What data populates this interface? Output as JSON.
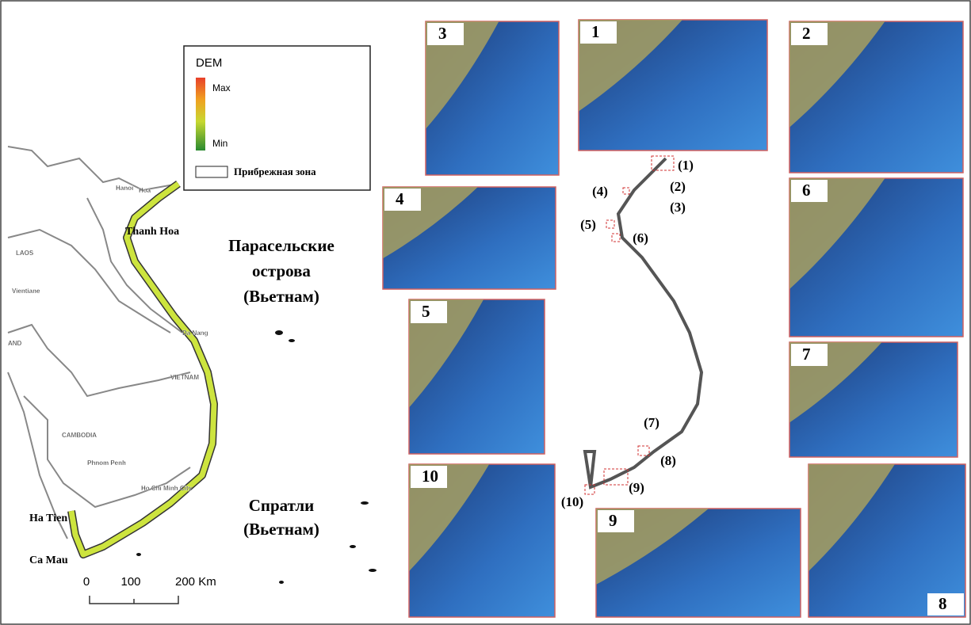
{
  "legend": {
    "title": "DEM",
    "max": "Max",
    "min": "Min",
    "zone": "Прибрежная зона"
  },
  "map_labels": {
    "thanh_hoa": "Thanh Hoa",
    "ha_tien": "Ha Tien",
    "ca_mau": "Ca Mau",
    "paracel": [
      "Парасельские",
      "острова",
      "(Вьетнам)"
    ],
    "spratly": [
      "Спратли",
      "(Вьетнам)"
    ]
  },
  "small_labels": [
    "Hanoi",
    "Hoa",
    "LAOS",
    "Vientiane",
    "AND",
    "Da Nang",
    "VIETNAM",
    "CAMBODIA",
    "Phnom Penh",
    "Ho Chi Minh City"
  ],
  "scale_bar": [
    "0",
    "100",
    "200 Km"
  ],
  "insets": [
    "1",
    "2",
    "3",
    "4",
    "5",
    "6",
    "7",
    "8",
    "9",
    "10"
  ],
  "coast_labels": [
    "(1)",
    "(2)",
    "(3)",
    "(4)",
    "(5)",
    "(6)",
    "(7)",
    "(8)",
    "(9)",
    "(10)"
  ]
}
